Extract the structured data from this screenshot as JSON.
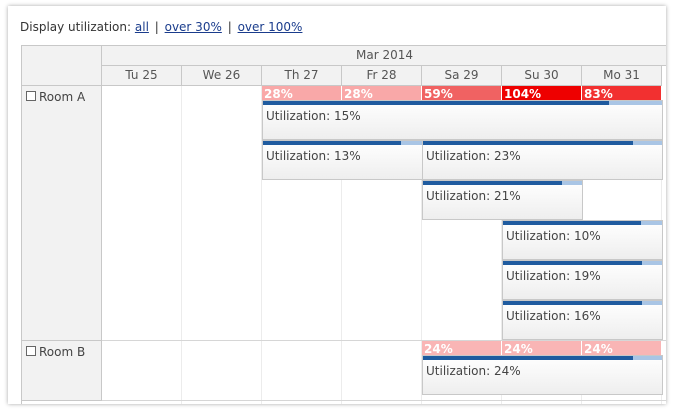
{
  "toolbar": {
    "label": "Display utilization:",
    "links": [
      "all",
      "over 30%",
      "over 100%"
    ],
    "sep": "|"
  },
  "calendar": {
    "month": "Mar 2014",
    "days": [
      "Tu 25",
      "We 26",
      "Th 27",
      "Fr 28",
      "Sa 29",
      "Su 30",
      "Mo 31"
    ]
  },
  "resources": [
    {
      "name": "Room A",
      "utilization": [
        {
          "day": 2,
          "label": "28%",
          "color": "#f9a8a8"
        },
        {
          "day": 3,
          "label": "28%",
          "color": "#f9a8a8"
        },
        {
          "day": 4,
          "label": "59%",
          "color": "#f06262"
        },
        {
          "day": 5,
          "label": "104%",
          "color": "#ee0000"
        },
        {
          "day": 6,
          "label": "83%",
          "color": "#f23030"
        }
      ],
      "events": [
        {
          "label": "Utilization: 15%",
          "start_day": 2,
          "span_days": 5,
          "lane": 0,
          "percent": 15
        },
        {
          "label": "Utilization: 13%",
          "start_day": 2,
          "span_days": 2,
          "lane": 1,
          "percent": 13
        },
        {
          "label": "Utilization: 23%",
          "start_day": 4,
          "span_days": 3,
          "lane": 1,
          "percent": 23
        },
        {
          "label": "Utilization: 21%",
          "start_day": 4,
          "span_days": 2,
          "lane": 2,
          "percent": 21
        },
        {
          "label": "Utilization: 10%",
          "start_day": 5,
          "span_days": 2,
          "lane": 3,
          "percent": 10
        },
        {
          "label": "Utilization: 19%",
          "start_day": 5,
          "span_days": 2,
          "lane": 4,
          "percent": 19
        },
        {
          "label": "Utilization: 16%",
          "start_day": 5,
          "span_days": 2,
          "lane": 5,
          "percent": 16
        }
      ]
    },
    {
      "name": "Room B",
      "utilization": [
        {
          "day": 4,
          "label": "24%",
          "color": "#f9b5b5"
        },
        {
          "day": 5,
          "label": "24%",
          "color": "#f9b5b5"
        },
        {
          "day": 6,
          "label": "24%",
          "color": "#f9b5b5"
        }
      ],
      "events": [
        {
          "label": "Utilization: 24%",
          "start_day": 4,
          "span_days": 3,
          "lane": 0,
          "percent": 24
        }
      ]
    }
  ]
}
